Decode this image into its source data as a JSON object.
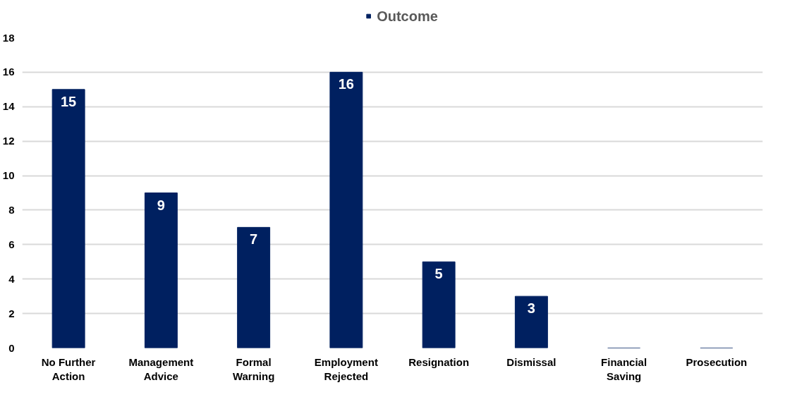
{
  "chart_data": {
    "type": "bar",
    "categories": [
      "No Further Action",
      "Management Advice",
      "Formal Warning",
      "Employment Rejected",
      "Resignation",
      "Dismissal",
      "Financial Saving",
      "Prosecution"
    ],
    "series": [
      {
        "name": "Outcome",
        "color": "#002060",
        "values": [
          15,
          9,
          7,
          16,
          5,
          3,
          0,
          0
        ],
        "value_labels": [
          "15",
          "9",
          "7",
          "16",
          "5",
          "3",
          null,
          null
        ]
      }
    ],
    "ylim": [
      0,
      18
    ],
    "yticks": [
      0,
      2,
      4,
      6,
      8,
      10,
      12,
      14,
      16,
      18
    ],
    "grid": "y",
    "legend": "top"
  }
}
